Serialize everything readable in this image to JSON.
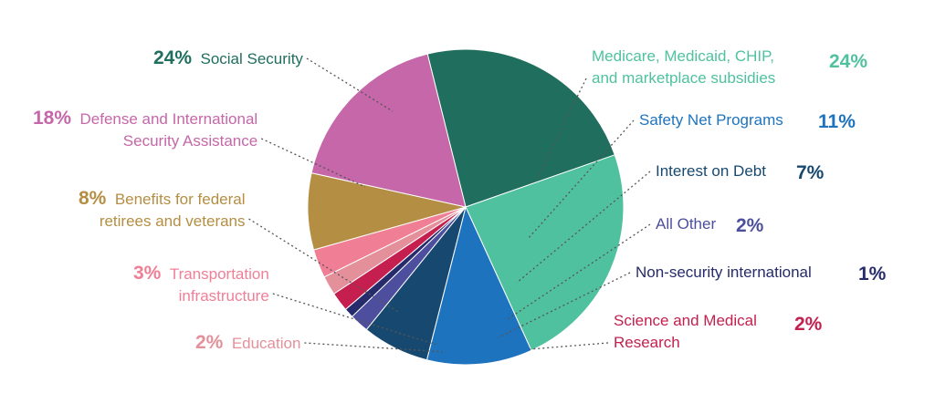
{
  "chart_data": {
    "type": "pie",
    "title": "",
    "slices": [
      {
        "label": "Social Security",
        "pct_text": "24%",
        "value": 24,
        "color": "#1f6e5e"
      },
      {
        "label": "Medicare, Medicaid, CHIP, and marketplace subsidies",
        "lines": [
          "Medicare, Medicaid, CHIP,",
          "and marketplace subsidies"
        ],
        "pct_text": "24%",
        "value": 24,
        "color": "#4fc19e"
      },
      {
        "label": "Safety Net Programs",
        "pct_text": "11%",
        "value": 11,
        "color": "#1e73be"
      },
      {
        "label": "Interest on Debt",
        "pct_text": "7%",
        "value": 7,
        "color": "#174970"
      },
      {
        "label": "All Other",
        "pct_text": "2%",
        "value": 2,
        "color": "#4d4f9e"
      },
      {
        "label": "Non-security international",
        "pct_text": "1%",
        "value": 1,
        "color": "#252b6b"
      },
      {
        "label": "Science and Medical Research",
        "lines": [
          "Science and Medical",
          "Research"
        ],
        "pct_text": "2%",
        "value": 2,
        "color": "#c41f4e"
      },
      {
        "label": "Education",
        "pct_text": "2%",
        "value": 2,
        "color": "#e4909a"
      },
      {
        "label": "Transportation infrastructure",
        "lines": [
          "Transportation",
          "infrastructure"
        ],
        "pct_text": "3%",
        "value": 3,
        "color": "#f07f96"
      },
      {
        "label": "Benefits for federal retirees and veterans",
        "lines": [
          "Benefits for federal",
          "retirees and veterans"
        ],
        "pct_text": "8%",
        "value": 8,
        "color": "#b48e43"
      },
      {
        "label": "Defense and International Security Assistance",
        "lines": [
          "Defense and International",
          "Security Assistance"
        ],
        "pct_text": "18%",
        "value": 18,
        "color": "#c567a8"
      }
    ]
  }
}
